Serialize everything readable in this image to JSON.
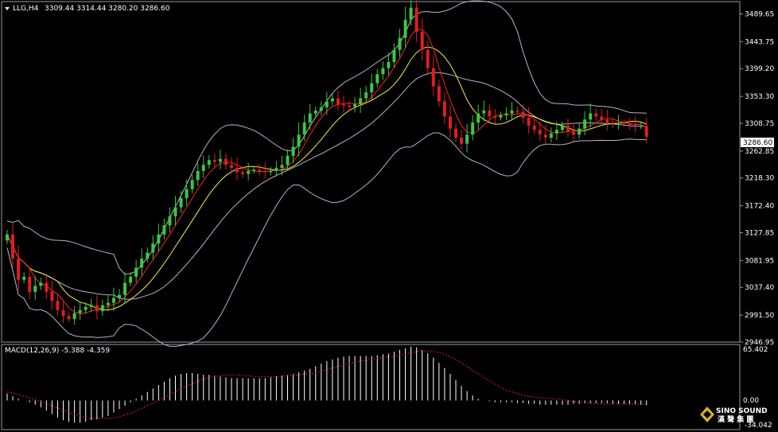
{
  "header": {
    "symbol_tf": "LLG,H4",
    "ohlc": "3309.44 3314.44 3280.20 3286.60"
  },
  "macd": {
    "label": "MACD(12,26,9) -5.388 -4.359",
    "axis_top": "65.402",
    "axis_zero": "0.00",
    "axis_bottom": "-34.042"
  },
  "price_axis": {
    "ticks": [
      "3489.65",
      "3443.75",
      "3399.20",
      "3353.30",
      "3308.75",
      "3262.85",
      "3218.30",
      "3172.40",
      "3127.85",
      "3081.95",
      "3037.40",
      "2991.50",
      "2946.95"
    ],
    "current_price": "3286.60"
  },
  "watermark": {
    "name": "SINO SOUND",
    "cn": "漢 聲 集 團"
  },
  "colors": {
    "background": "#000000",
    "bull": "#3cc83c",
    "bear": "#e01e1e",
    "bollinger": "#b4b4c8",
    "ma_fast": "#ff2020",
    "ma_slow": "#f0f040",
    "macd_hist": "#ffffff",
    "macd_signal": "#e01e1e"
  },
  "chart_data": {
    "type": "candlestick",
    "price_range": [
      2946.95,
      3510.0
    ],
    "macd_range": [
      -34.042,
      65.402
    ],
    "close": [
      3125,
      3085,
      3050,
      3055,
      3030,
      3040,
      3045,
      3030,
      3015,
      3000,
      2990,
      2985,
      2995,
      3000,
      3005,
      3008,
      2998,
      3008,
      3012,
      3020,
      3025,
      3045,
      3055,
      3070,
      3085,
      3095,
      3110,
      3125,
      3140,
      3155,
      3170,
      3185,
      3200,
      3215,
      3230,
      3240,
      3248,
      3245,
      3250,
      3240,
      3235,
      3228,
      3225,
      3230,
      3232,
      3230,
      3228,
      3230,
      3235,
      3240,
      3255,
      3270,
      3290,
      3310,
      3325,
      3330,
      3335,
      3345,
      3350,
      3340,
      3338,
      3336,
      3340,
      3350,
      3360,
      3375,
      3390,
      3400,
      3410,
      3430,
      3450,
      3480,
      3500,
      3460,
      3430,
      3400,
      3370,
      3345,
      3320,
      3300,
      3285,
      3275,
      3290,
      3310,
      3325,
      3330,
      3320,
      3318,
      3322,
      3325,
      3330,
      3328,
      3318,
      3305,
      3298,
      3290,
      3285,
      3292,
      3298,
      3305,
      3295,
      3290,
      3300,
      3315,
      3325,
      3320,
      3315,
      3310,
      3308,
      3310,
      3308,
      3306,
      3304,
      3304,
      3286.6
    ],
    "macd_hist": [
      8,
      5,
      2,
      0,
      -2,
      -5,
      -8,
      -12,
      -16,
      -20,
      -23,
      -25,
      -26,
      -26,
      -25,
      -23,
      -22,
      -20,
      -18,
      -14,
      -10,
      -6,
      -2,
      2,
      6,
      10,
      14,
      18,
      22,
      26,
      29,
      31,
      32,
      32,
      31,
      30,
      30,
      29,
      28,
      27,
      26,
      26,
      26,
      26,
      26,
      26,
      26,
      27,
      28,
      29,
      30,
      31,
      33,
      35,
      37,
      40,
      43,
      46,
      48,
      50,
      51,
      52,
      52,
      52,
      52,
      52,
      53,
      54,
      55,
      57,
      59,
      61,
      63,
      62,
      59,
      55,
      50,
      44,
      38,
      31,
      24,
      17,
      11,
      6,
      2,
      0,
      -1,
      -2,
      -2,
      -2,
      -2,
      -3,
      -3,
      -4,
      -4,
      -5,
      -5,
      -5,
      -5,
      -5,
      -5,
      -4,
      -4,
      -3,
      -3,
      -3,
      -3,
      -3,
      -4,
      -4,
      -4,
      -5,
      -5,
      -5,
      -5.388
    ],
    "macd_signal": [
      10,
      9,
      7,
      5,
      3,
      1,
      -2,
      -4,
      -6,
      -9,
      -11,
      -14,
      -16,
      -18,
      -20,
      -21,
      -21,
      -21,
      -21,
      -20,
      -19,
      -17,
      -15,
      -12,
      -9,
      -6,
      -3,
      0,
      3,
      7,
      10,
      14,
      17,
      20,
      22,
      25,
      27,
      28,
      29,
      30,
      30,
      30,
      29,
      29,
      28,
      28,
      28,
      28,
      28,
      28,
      29,
      29,
      30,
      31,
      31,
      32,
      34,
      36,
      38,
      40,
      42,
      43,
      45,
      46,
      47,
      48,
      49,
      50,
      51,
      52,
      53,
      54,
      56,
      57,
      58,
      58,
      57,
      56,
      54,
      51,
      48,
      44,
      40,
      35,
      31,
      27,
      23,
      19,
      15,
      12,
      10,
      8,
      6,
      5,
      4,
      3,
      3,
      2,
      2,
      1,
      0,
      -1,
      -2,
      -3,
      -3,
      -4,
      -4,
      -4,
      -4,
      -4,
      -4,
      -4,
      -4,
      -4,
      -4.359
    ]
  }
}
